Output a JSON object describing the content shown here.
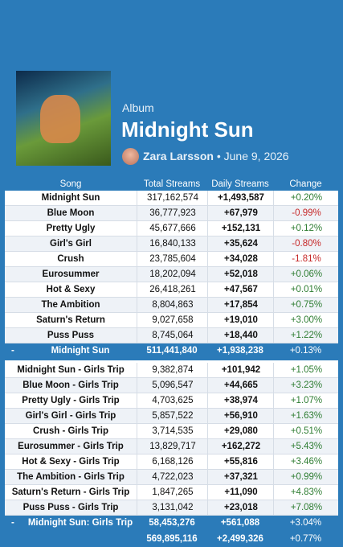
{
  "header": {
    "kind": "Album",
    "title": "Midnight Sun",
    "artist": "Zara Larsson",
    "separator": "•",
    "date": "June 9, 2026"
  },
  "table": {
    "columns": [
      "Song",
      "Total Streams",
      "Daily Streams",
      "Change"
    ],
    "summary_marker": "-",
    "sections": [
      {
        "rows": [
          [
            "Midnight Sun",
            "317,162,574",
            "+1,493,587",
            "+0.20%"
          ],
          [
            "Blue Moon",
            "36,777,923",
            "+67,979",
            "-0.99%"
          ],
          [
            "Pretty Ugly",
            "45,677,666",
            "+152,131",
            "+0.12%"
          ],
          [
            "Girl's Girl",
            "16,840,133",
            "+35,624",
            "-0.80%"
          ],
          [
            "Crush",
            "23,785,604",
            "+34,028",
            "-1.81%"
          ],
          [
            "Eurosummer",
            "18,202,094",
            "+52,018",
            "+0.06%"
          ],
          [
            "Hot & Sexy",
            "26,418,261",
            "+47,567",
            "+0.01%"
          ],
          [
            "The Ambition",
            "8,804,863",
            "+17,854",
            "+0.75%"
          ],
          [
            "Saturn's Return",
            "9,027,658",
            "+19,010",
            "+3.00%"
          ],
          [
            "Puss Puss",
            "8,745,064",
            "+18,440",
            "+1.22%"
          ]
        ],
        "summary": [
          "Midnight Sun",
          "511,441,840",
          "+1,938,238",
          "+0.13%"
        ]
      },
      {
        "rows": [
          [
            "Midnight Sun - Girls Trip",
            "9,382,874",
            "+101,942",
            "+1.05%"
          ],
          [
            "Blue Moon - Girls Trip",
            "5,096,547",
            "+44,665",
            "+3.23%"
          ],
          [
            "Pretty Ugly - Girls Trip",
            "4,703,625",
            "+38,974",
            "+1.07%"
          ],
          [
            "Girl's Girl - Girls Trip",
            "5,857,522",
            "+56,910",
            "+1.63%"
          ],
          [
            "Crush - Girls Trip",
            "3,714,535",
            "+29,080",
            "+0.51%"
          ],
          [
            "Eurosummer - Girls Trip",
            "13,829,717",
            "+162,272",
            "+5.43%"
          ],
          [
            "Hot & Sexy - Girls Trip",
            "6,168,126",
            "+55,816",
            "+3.46%"
          ],
          [
            "The Ambition - Girls Trip",
            "4,722,023",
            "+37,321",
            "+0.99%"
          ],
          [
            "Saturn's Return - Girls Trip",
            "1,847,265",
            "+11,090",
            "+4.83%"
          ],
          [
            "Puss Puss - Girls Trip",
            "3,131,042",
            "+23,018",
            "+7.08%"
          ]
        ],
        "summary": [
          "Midnight Sun: Girls Trip",
          "58,453,276",
          "+561,088",
          "+3.04%"
        ]
      }
    ],
    "total": [
      "569,895,116",
      "+2,499,326",
      "+0.77%"
    ]
  }
}
